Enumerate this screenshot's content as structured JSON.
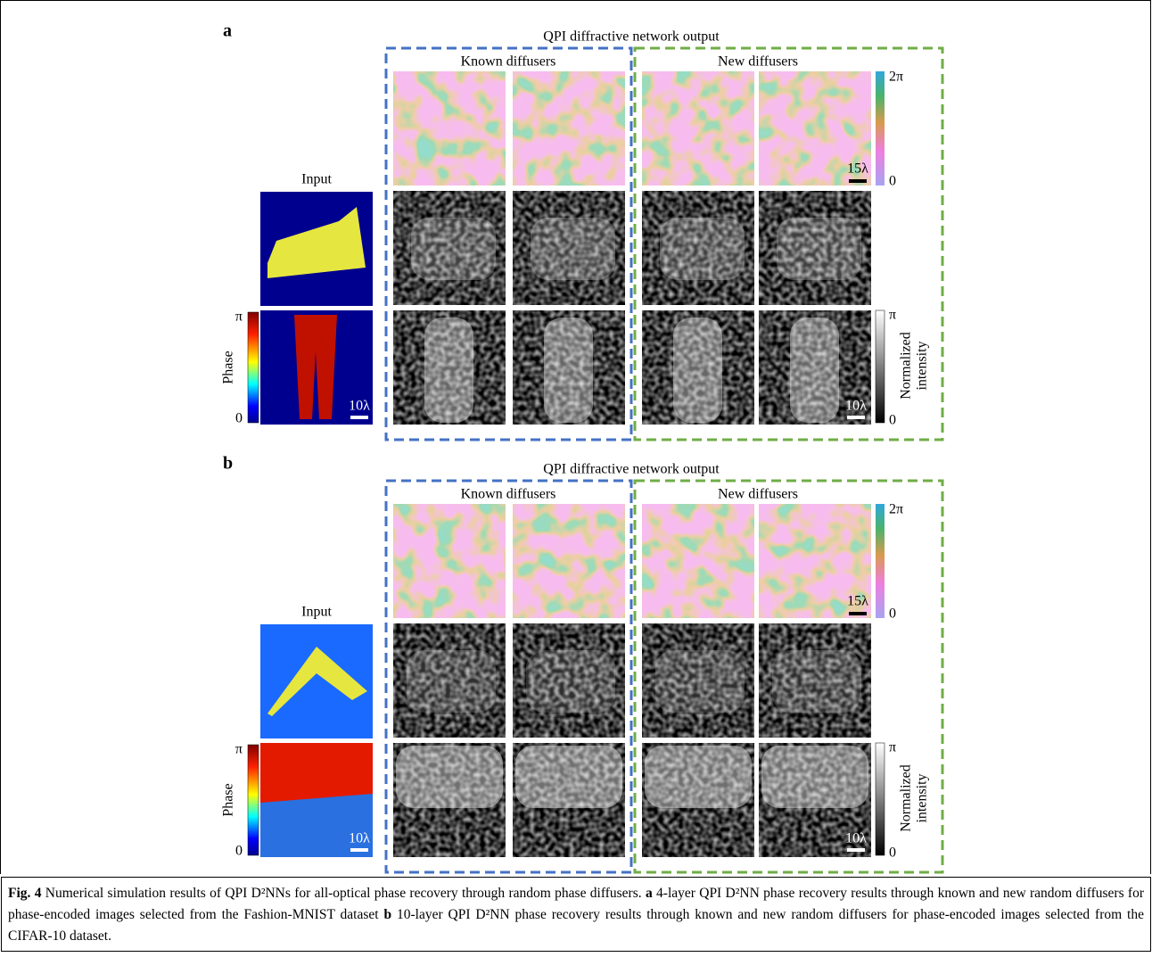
{
  "panels": [
    {
      "label": "a",
      "title": "QPI diffractive network output",
      "known": "Known diffusers",
      "new": "New diffusers",
      "input": "Input",
      "phase_axis": {
        "label": "Phase",
        "top": "π",
        "bottom": "0"
      },
      "input_scale": "10λ",
      "diffuser_colorbar": {
        "top": "2π",
        "bottom": "0"
      },
      "diffuser_scale": "15λ",
      "intensity_colorbar": {
        "label_lines": [
          "Normalized",
          "intensity"
        ],
        "top": "π",
        "bottom": "0"
      },
      "output_scale": "10λ"
    },
    {
      "label": "b",
      "title": "QPI diffractive network output",
      "known": "Known diffusers",
      "new": "New diffusers",
      "input": "Input",
      "phase_axis": {
        "label": "Phase",
        "top": "π",
        "bottom": "0"
      },
      "input_scale": "10λ",
      "diffuser_colorbar": {
        "top": "2π",
        "bottom": "0"
      },
      "diffuser_scale": "15λ",
      "intensity_colorbar": {
        "label_lines": [
          "Normalized",
          "intensity"
        ],
        "top": "π",
        "bottom": "0"
      },
      "output_scale": "10λ"
    }
  ],
  "caption": {
    "figure": "Fig. 4",
    "summary": " Numerical simulation results of QPI D²NNs for all-optical phase recovery through random phase diffusers. ",
    "a_label": "a",
    "a_text": " 4-layer QPI D²NN phase recovery results through known and new random diffusers for phase-encoded images selected from the Fashion-MNIST dataset ",
    "b_label": "b",
    "b_text": " 10-layer QPI D²NN phase recovery results through known and new random diffusers for phase-encoded images selected from the CIFAR-10 dataset."
  }
}
